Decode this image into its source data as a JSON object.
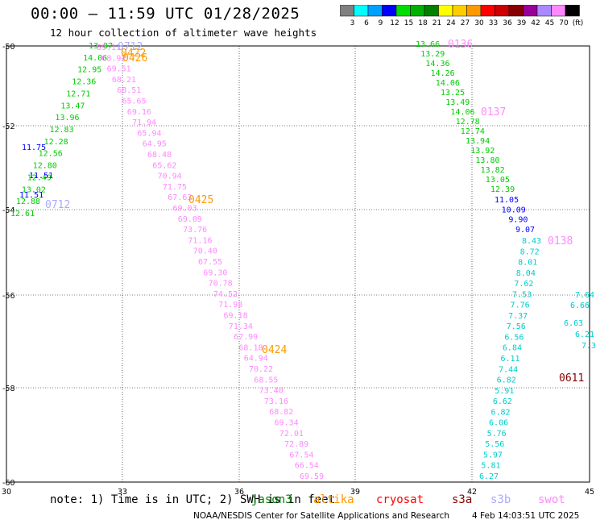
{
  "header": {
    "title": "00:00 – 11:59 UTC 01/28/2025",
    "subtitle": "12 hour collection of altimeter wave heights"
  },
  "colorbar": {
    "colors": [
      "#808080",
      "#00ffff",
      "#00a0ff",
      "#0000ff",
      "#00dd00",
      "#00b000",
      "#008000",
      "#ffff00",
      "#ffcc00",
      "#ff9900",
      "#ff0000",
      "#cc0000",
      "#880000",
      "#990099",
      "#aa88ff",
      "#ff88ff",
      "#000000"
    ],
    "labels": [
      "3",
      "6",
      "9",
      "12",
      "15",
      "18",
      "21",
      "24",
      "27",
      "30",
      "33",
      "36",
      "39",
      "42",
      "45",
      "70",
      "(ft)"
    ]
  },
  "axes": {
    "lon_ticks": [
      "30",
      "33",
      "36",
      "39",
      "42",
      "45"
    ],
    "lat_ticks": [
      "-50",
      "-52",
      "-54",
      "-56",
      "-58",
      "-60"
    ]
  },
  "note": "note: 1) Time is in UTC; 2) SWH is in feet",
  "legend": [
    {
      "label": "jason3",
      "color": "#008000"
    },
    {
      "label": "altika",
      "color": "#ff9900"
    },
    {
      "label": "cryosat",
      "color": "#ff0000"
    },
    {
      "label": "s3a",
      "color": "#880000"
    },
    {
      "label": "s3b",
      "color": "#aaaaff"
    },
    {
      "label": "swot",
      "color": "#ff88ff"
    }
  ],
  "footer": {
    "credit": "NOAA/NESDIS Center for Satellite Applications and Research",
    "generated": "4 Feb 14:03:51 UTC 2025"
  },
  "time_labels": [
    {
      "text": "0712",
      "color": "#aaaaff"
    },
    {
      "text": "0422",
      "color": "#ff9900"
    },
    {
      "text": "0426",
      "color": "#ff9900"
    },
    {
      "text": "0712",
      "color": "#aaaaff"
    },
    {
      "text": "0425",
      "color": "#ff9900"
    },
    {
      "text": "0424",
      "color": "#ff9900"
    },
    {
      "text": "0136",
      "color": "#ff88ff"
    },
    {
      "text": "0137",
      "color": "#ff88ff"
    },
    {
      "text": "0138",
      "color": "#ff88ff"
    },
    {
      "text": "0611",
      "color": "#880000"
    }
  ],
  "tracks": [
    {
      "name": "jason3",
      "color": "#00cc00",
      "values": [
        "13.87",
        "14.06",
        "12.95",
        "12.36",
        "12.71",
        "13.47",
        "13.96",
        "12.83",
        "12.28",
        "12.56",
        "12.80",
        "12.49",
        "13.02",
        "12.88",
        "12.61"
      ]
    },
    {
      "name": "jason3-blue",
      "color": "#0000ff",
      "values": [
        "11.75",
        "11.51",
        "11.51"
      ]
    },
    {
      "name": "swot-west",
      "color": "#ff88ff",
      "values": [
        "69.11",
        "68.92",
        "69.51",
        "68.21",
        "68.51",
        "65.65",
        "69.16",
        "71.94",
        "65.94",
        "64.95",
        "68.48",
        "65.62",
        "70.94",
        "71.75",
        "67.63",
        "69.03",
        "69.09",
        "73.76",
        "71.16",
        "70.40",
        "67.55",
        "69.30",
        "70.78",
        "74.52",
        "71.98",
        "69.18",
        "71.34",
        "67.99",
        "68.18",
        "64.94",
        "70.22",
        "68.55",
        "73.40",
        "73.16",
        "68.82",
        "69.34",
        "72.01",
        "72.89",
        "67.54",
        "66.54",
        "69.59"
      ]
    },
    {
      "name": "jason3-east",
      "color": "#00cc00",
      "values": [
        "13.66",
        "13.29",
        "14.36",
        "14.26",
        "14.06",
        "13.25",
        "13.49",
        "14.06",
        "12.78",
        "12.74",
        "13.94",
        "13.92",
        "13.80",
        "13.82",
        "13.05",
        "12.39"
      ]
    },
    {
      "name": "blue-east",
      "color": "#0000ff",
      "values": [
        "11.05",
        "10.09",
        "9.90",
        "9.07"
      ]
    },
    {
      "name": "cyan-east",
      "color": "#00cccc",
      "values": [
        "8.43",
        "8.72",
        "8.01",
        "8.04",
        "7.62",
        "7.53",
        "7.76",
        "7.37",
        "7.56",
        "6.56",
        "6.84",
        "6.11",
        "7.44",
        "6.82",
        "5.91",
        "6.62",
        "6.82",
        "6.06",
        "5.76",
        "5.56",
        "5.97",
        "5.81",
        "6.27"
      ]
    },
    {
      "name": "cyan-edge",
      "color": "#00cccc",
      "values": [
        "7.64",
        "6.66",
        "6.63",
        "6.21",
        "7.3"
      ]
    }
  ]
}
